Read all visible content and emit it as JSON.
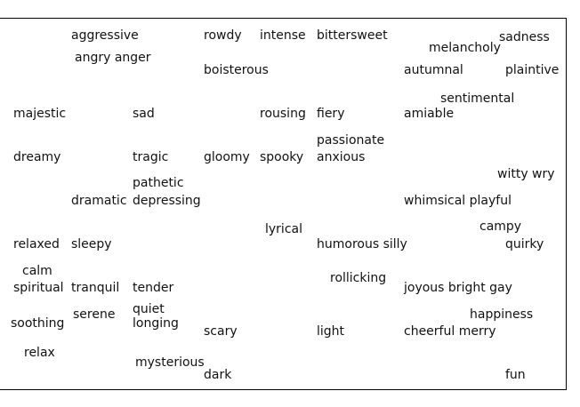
{
  "words": [
    {
      "id": "aggressive",
      "text": "aggressive"
    },
    {
      "id": "angry-anger",
      "text": "angry anger"
    },
    {
      "id": "rowdy",
      "text": "rowdy"
    },
    {
      "id": "boisterous",
      "text": "boisterous"
    },
    {
      "id": "intense",
      "text": "intense"
    },
    {
      "id": "bittersweet",
      "text": "bittersweet"
    },
    {
      "id": "melancholy",
      "text": "melancholy"
    },
    {
      "id": "sadness",
      "text": "sadness"
    },
    {
      "id": "autumnal",
      "text": "autumnal"
    },
    {
      "id": "plaintive",
      "text": "plaintive"
    },
    {
      "id": "sentimental",
      "text": "sentimental"
    },
    {
      "id": "majestic",
      "text": "majestic"
    },
    {
      "id": "sad",
      "text": "sad"
    },
    {
      "id": "rousing",
      "text": "rousing"
    },
    {
      "id": "fiery",
      "text": "fiery"
    },
    {
      "id": "amiable",
      "text": "amiable"
    },
    {
      "id": "passionate",
      "text": "passionate"
    },
    {
      "id": "dreamy",
      "text": "dreamy"
    },
    {
      "id": "tragic",
      "text": "tragic"
    },
    {
      "id": "gloomy",
      "text": "gloomy"
    },
    {
      "id": "spooky",
      "text": "spooky"
    },
    {
      "id": "anxious",
      "text": "anxious"
    },
    {
      "id": "witty-wry",
      "text": "witty wry"
    },
    {
      "id": "pathetic",
      "text": "pathetic"
    },
    {
      "id": "dramatic",
      "text": "dramatic"
    },
    {
      "id": "depressing",
      "text": "depressing"
    },
    {
      "id": "whimsical-playful",
      "text": "whimsical playful"
    },
    {
      "id": "lyrical",
      "text": "lyrical"
    },
    {
      "id": "campy",
      "text": "campy"
    },
    {
      "id": "relaxed",
      "text": "relaxed"
    },
    {
      "id": "sleepy",
      "text": "sleepy"
    },
    {
      "id": "humorous-silly",
      "text": "humorous silly"
    },
    {
      "id": "quirky",
      "text": "quirky"
    },
    {
      "id": "calm",
      "text": "calm"
    },
    {
      "id": "rollicking",
      "text": "rollicking"
    },
    {
      "id": "spiritual",
      "text": "spiritual"
    },
    {
      "id": "tranquil",
      "text": "tranquil"
    },
    {
      "id": "tender",
      "text": "tender"
    },
    {
      "id": "joyous-bright-gay",
      "text": "joyous bright gay"
    },
    {
      "id": "quiet",
      "text": "quiet"
    },
    {
      "id": "serene",
      "text": "serene"
    },
    {
      "id": "happiness",
      "text": "happiness"
    },
    {
      "id": "soothing",
      "text": "soothing"
    },
    {
      "id": "longing",
      "text": "longing"
    },
    {
      "id": "scary",
      "text": "scary"
    },
    {
      "id": "light",
      "text": "light"
    },
    {
      "id": "cheerful-merry",
      "text": "cheerful merry"
    },
    {
      "id": "relax",
      "text": "relax"
    },
    {
      "id": "mysterious",
      "text": "mysterious"
    },
    {
      "id": "dark",
      "text": "dark"
    },
    {
      "id": "fun",
      "text": "fun"
    }
  ]
}
